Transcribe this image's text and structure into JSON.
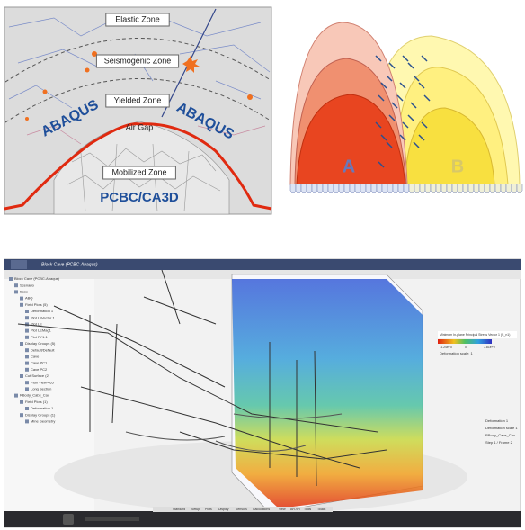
{
  "diagram_left": {
    "zones": [
      "Elastic Zone",
      "Seismogenic Zone",
      "Yielded Zone",
      "Air Gap",
      "Mobilized Zone"
    ],
    "method_labels": [
      "ABAQUS",
      "ABAQUS"
    ],
    "bottom_label": "PCBC/CA3D"
  },
  "diagram_right": {
    "labels": [
      "A",
      "B"
    ]
  },
  "screenshot": {
    "window_title": "Block Cave (PCBC-Abaqus)",
    "tree": [
      "Block Cave (PCBC-Abaqus)",
      "Scenario",
      "Base",
      "ABQ",
      "Field Plots (5)",
      "Deformation 1",
      "Plot U/Vector 1",
      "Plot LE",
      "Plot LEMag1",
      "Plot FY1.1",
      "Display Groups (5)",
      "Default/Default",
      "Cave",
      "Cave PC1",
      "Cave PC2",
      "Cut Surface (2)",
      "Plan View-465",
      "Long Section",
      "RBody_Cabs_Cav",
      "Field Plots (1)",
      "Deformation-1",
      "Display Groups (1)",
      "Mine Geometry"
    ],
    "legend": {
      "title": "Minimum In-plane Principal Stress Vector 1 (S_n1)",
      "min": "-1.24e+0",
      "max": "7.81e+0",
      "mid": "0",
      "note": "Deformation scale: 1"
    },
    "info": [
      "Deformation 1",
      "Deformation scale 1",
      "RBody_Cabs_Cav",
      "Step 1 / Frame 2"
    ],
    "toolbar_tabs": [
      "Standard",
      "Setup",
      "Plots",
      "Display",
      "Sensors",
      "Calculations",
      "View",
      "AR-VR",
      "Tools",
      "Touch"
    ]
  }
}
